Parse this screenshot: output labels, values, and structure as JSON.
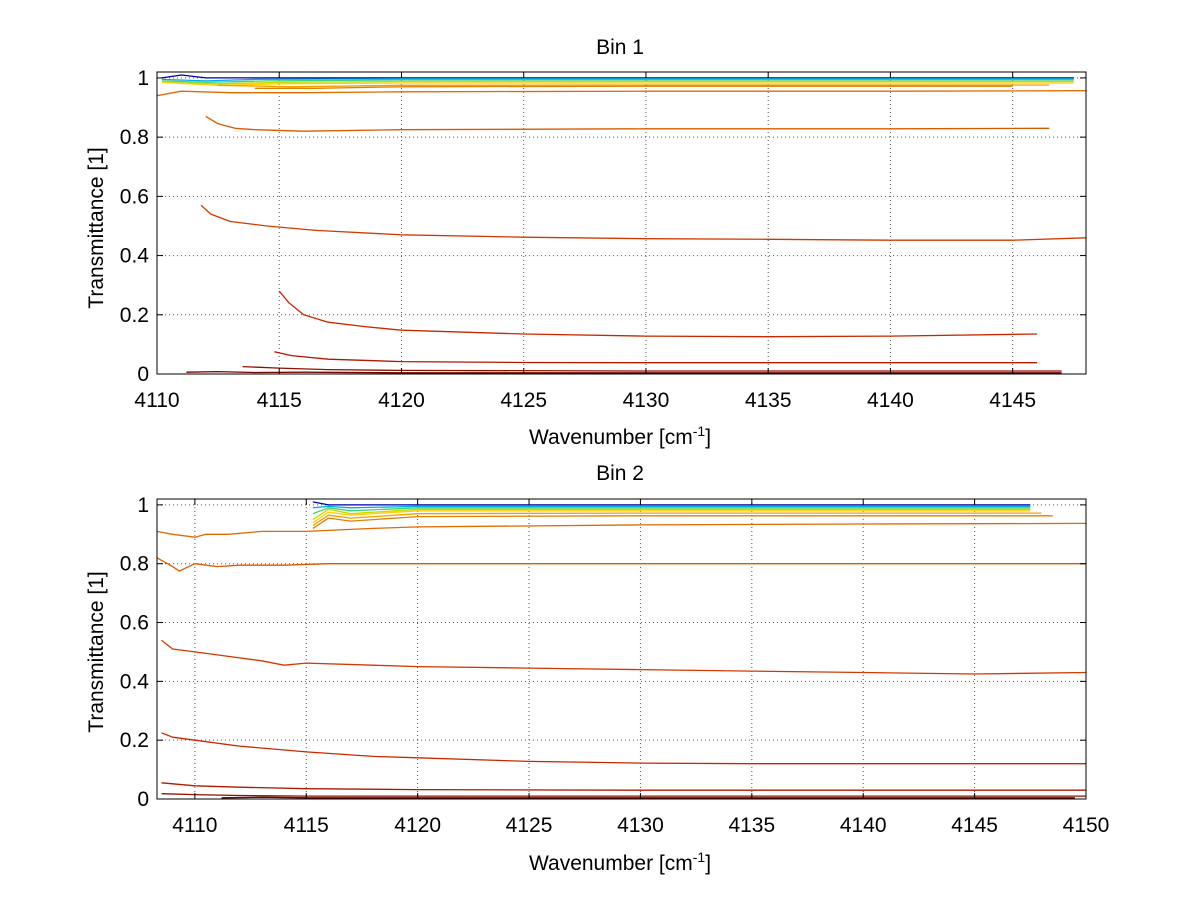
{
  "chart_data": [
    {
      "type": "line",
      "title": "Bin 1",
      "xlabel": "Wavenumber [cm",
      "xlabel_sup": "-1",
      "xlabel_end": "]",
      "ylabel": "Transmittance [1]",
      "xlim": [
        4110,
        4148
      ],
      "ylim": [
        0,
        1.02
      ],
      "xticks": [
        4110,
        4115,
        4120,
        4125,
        4130,
        4135,
        4140,
        4145
      ],
      "yticks": [
        0,
        0.2,
        0.4,
        0.6,
        0.8,
        1
      ],
      "grid": true,
      "series": [
        {
          "color": "#0000aa",
          "x": [
            4110.2,
            4111.0,
            4112.0,
            4114.0,
            4120,
            4130,
            4140,
            4147.5
          ],
          "y": [
            1.0,
            1.01,
            1.0,
            1.0,
            1.0,
            1.0,
            1.0,
            1.0
          ]
        },
        {
          "color": "#00b0e0",
          "x": [
            4110.2,
            4112.0,
            4114.0,
            4120,
            4130,
            4140,
            4147.5
          ],
          "y": [
            0.995,
            0.99,
            0.995,
            0.997,
            0.997,
            0.997,
            0.997
          ]
        },
        {
          "color": "#40d080",
          "x": [
            4110.2,
            4112.0,
            4114.5,
            4120,
            4130,
            4140,
            4147.5
          ],
          "y": [
            0.99,
            0.985,
            0.99,
            0.993,
            0.993,
            0.993,
            0.993
          ]
        },
        {
          "color": "#c8d800",
          "x": [
            4110.2,
            4112.5,
            4115.0,
            4120,
            4130,
            4140,
            4147.5
          ],
          "y": [
            0.985,
            0.98,
            0.985,
            0.988,
            0.988,
            0.988,
            0.988
          ]
        },
        {
          "color": "#ffd000",
          "x": [
            4110.2,
            4112.5,
            4115.0,
            4120,
            4130,
            4140,
            4147.5
          ],
          "y": [
            0.985,
            0.975,
            0.98,
            0.983,
            0.983,
            0.983,
            0.983
          ]
        },
        {
          "color": "#f0a000",
          "x": [
            4112.5,
            4115.5,
            4120,
            4130,
            4140,
            4146.5
          ],
          "y": [
            0.975,
            0.97,
            0.975,
            0.976,
            0.976,
            0.976
          ]
        },
        {
          "color": "#e08000",
          "x": [
            4114.0,
            4116.5,
            4120,
            4130,
            4140,
            4145.0
          ],
          "y": [
            0.965,
            0.965,
            0.97,
            0.972,
            0.972,
            0.972
          ]
        },
        {
          "color": "#e06a00",
          "x": [
            4110.0,
            4111.0,
            4113.0,
            4116.0,
            4120,
            4130,
            4140,
            4148.0
          ],
          "y": [
            0.94,
            0.955,
            0.95,
            0.95,
            0.953,
            0.955,
            0.955,
            0.957
          ]
        },
        {
          "color": "#d85a00",
          "x": [
            4112.0,
            4112.5,
            4113.2,
            4114.0,
            4116.0,
            4120,
            4130,
            4140,
            4146.5
          ],
          "y": [
            0.87,
            0.845,
            0.83,
            0.825,
            0.82,
            0.825,
            0.828,
            0.828,
            0.83
          ]
        },
        {
          "color": "#d03a00",
          "x": [
            4111.8,
            4112.2,
            4113.0,
            4114.5,
            4116.5,
            4120,
            4125,
            4130,
            4135,
            4140,
            4145,
            4148.0
          ],
          "y": [
            0.57,
            0.54,
            0.515,
            0.5,
            0.485,
            0.47,
            0.462,
            0.457,
            0.455,
            0.452,
            0.452,
            0.46
          ]
        },
        {
          "color": "#c82800",
          "x": [
            4115.0,
            4115.4,
            4116.0,
            4117.0,
            4118.5,
            4120,
            4125,
            4130,
            4135,
            4140,
            4146.0
          ],
          "y": [
            0.28,
            0.24,
            0.2,
            0.175,
            0.16,
            0.148,
            0.135,
            0.128,
            0.126,
            0.128,
            0.135
          ]
        },
        {
          "color": "#b01800",
          "x": [
            4114.8,
            4115.5,
            4117.0,
            4120,
            4125,
            4130,
            4140,
            4146.0
          ],
          "y": [
            0.075,
            0.062,
            0.05,
            0.042,
            0.039,
            0.038,
            0.038,
            0.038
          ]
        },
        {
          "color": "#901000",
          "x": [
            4113.5,
            4115.0,
            4117.0,
            4120,
            4130,
            4140,
            4147.0
          ],
          "y": [
            0.025,
            0.02,
            0.015,
            0.012,
            0.01,
            0.01,
            0.01
          ]
        },
        {
          "color": "#700800",
          "x": [
            4111.2,
            4112.5,
            4114.0,
            4116.0,
            4120,
            4130,
            4140,
            4147.0
          ],
          "y": [
            0.006,
            0.008,
            0.005,
            0.006,
            0.004,
            0.004,
            0.004,
            0.004
          ]
        }
      ]
    },
    {
      "type": "line",
      "title": "Bin 2",
      "xlabel": "Wavenumber [cm",
      "xlabel_sup": "-1",
      "xlabel_end": "]",
      "ylabel": "Transmittance [1]",
      "xlim": [
        4108.3,
        4150
      ],
      "ylim": [
        0,
        1.02
      ],
      "xticks": [
        4110,
        4115,
        4120,
        4125,
        4130,
        4135,
        4140,
        4145,
        4150
      ],
      "yticks": [
        0,
        0.2,
        0.4,
        0.6,
        0.8,
        1
      ],
      "grid": true,
      "series": [
        {
          "color": "#0000aa",
          "x": [
            4115.3,
            4116.0,
            4117.0,
            4120,
            4130,
            4140,
            4147.5
          ],
          "y": [
            1.01,
            1.0,
            1.0,
            1.0,
            1.0,
            1.0,
            1.0
          ]
        },
        {
          "color": "#00b0e0",
          "x": [
            4115.3,
            4116.0,
            4117.0,
            4120,
            4130,
            4140,
            4147.5
          ],
          "y": [
            0.99,
            0.995,
            0.99,
            0.995,
            0.995,
            0.995,
            0.995
          ]
        },
        {
          "color": "#40d080",
          "x": [
            4115.3,
            4116.0,
            4117.0,
            4120,
            4130,
            4140,
            4147.5
          ],
          "y": [
            0.97,
            0.99,
            0.98,
            0.99,
            0.99,
            0.99,
            0.99
          ]
        },
        {
          "color": "#c8d800",
          "x": [
            4115.3,
            4116.0,
            4117.0,
            4120,
            4130,
            4140,
            4147.5
          ],
          "y": [
            0.95,
            0.985,
            0.97,
            0.985,
            0.985,
            0.985,
            0.985
          ]
        },
        {
          "color": "#ffd000",
          "x": [
            4115.3,
            4116.0,
            4117.0,
            4120,
            4130,
            4140,
            4147.5
          ],
          "y": [
            0.94,
            0.975,
            0.965,
            0.98,
            0.98,
            0.98,
            0.98
          ]
        },
        {
          "color": "#f0a000",
          "x": [
            4115.3,
            4116.0,
            4117.0,
            4120,
            4130,
            4140,
            4148.0
          ],
          "y": [
            0.93,
            0.965,
            0.955,
            0.97,
            0.972,
            0.972,
            0.972
          ]
        },
        {
          "color": "#e08000",
          "x": [
            4115.3,
            4116.0,
            4117.0,
            4120,
            4130,
            4140,
            4148.5
          ],
          "y": [
            0.92,
            0.955,
            0.945,
            0.96,
            0.963,
            0.963,
            0.963
          ]
        },
        {
          "color": "#e06a00",
          "x": [
            4108.3,
            4109.0,
            4110.0,
            4110.5,
            4111.5,
            4113.0,
            4115.0,
            4118.0,
            4120,
            4130,
            4140,
            4150.0
          ],
          "y": [
            0.91,
            0.9,
            0.89,
            0.9,
            0.9,
            0.91,
            0.91,
            0.92,
            0.925,
            0.932,
            0.935,
            0.937
          ]
        },
        {
          "color": "#d85a00",
          "x": [
            4108.3,
            4109.0,
            4109.3,
            4110.0,
            4111.0,
            4112.0,
            4114.0,
            4116.0,
            4120,
            4130,
            4140,
            4150.0
          ],
          "y": [
            0.82,
            0.79,
            0.775,
            0.8,
            0.79,
            0.795,
            0.795,
            0.8,
            0.8,
            0.8,
            0.8,
            0.8
          ]
        },
        {
          "color": "#d03a00",
          "x": [
            4108.5,
            4109.0,
            4110.0,
            4111.0,
            4113.0,
            4114.0,
            4115.0,
            4118.0,
            4120,
            4125,
            4130,
            4135,
            4140,
            4145,
            4150.0
          ],
          "y": [
            0.54,
            0.51,
            0.5,
            0.49,
            0.47,
            0.455,
            0.462,
            0.455,
            0.45,
            0.445,
            0.44,
            0.435,
            0.43,
            0.425,
            0.43
          ]
        },
        {
          "color": "#c82800",
          "x": [
            4108.5,
            4109.0,
            4110.0,
            4112.0,
            4115.0,
            4118.0,
            4120,
            4125,
            4130,
            4135,
            4140,
            4145,
            4150.0
          ],
          "y": [
            0.225,
            0.21,
            0.2,
            0.18,
            0.16,
            0.145,
            0.14,
            0.128,
            0.122,
            0.12,
            0.12,
            0.12,
            0.12
          ]
        },
        {
          "color": "#b01800",
          "x": [
            4108.5,
            4110.0,
            4112.0,
            4115.0,
            4120,
            4130,
            4140,
            4150.0
          ],
          "y": [
            0.055,
            0.045,
            0.04,
            0.035,
            0.032,
            0.03,
            0.03,
            0.03
          ]
        },
        {
          "color": "#901000",
          "x": [
            4108.5,
            4110.0,
            4112.0,
            4115.0,
            4120,
            4130,
            4140,
            4150.0
          ],
          "y": [
            0.018,
            0.015,
            0.012,
            0.01,
            0.01,
            0.01,
            0.01,
            0.01
          ]
        },
        {
          "color": "#700800",
          "x": [
            4111.2,
            4113.0,
            4115.0,
            4120,
            4130,
            4140,
            4149.5
          ],
          "y": [
            0.004,
            0.006,
            0.004,
            0.004,
            0.004,
            0.004,
            0.004
          ]
        }
      ]
    }
  ]
}
